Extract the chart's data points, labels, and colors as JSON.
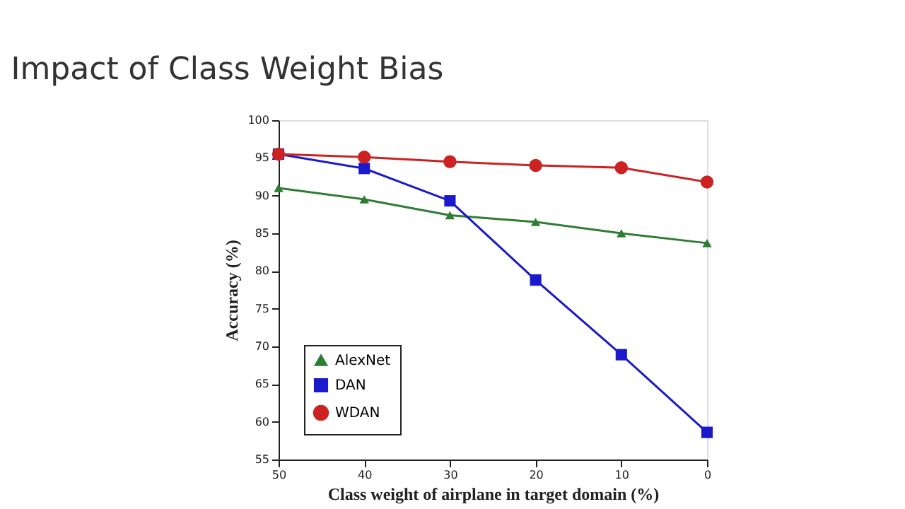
{
  "chart_data": {
    "type": "line",
    "title": "Impact of Class Weight Bias",
    "xlabel": "Class weight of airplane in target domain (%)",
    "ylabel": "Accuracy (%)",
    "x": [
      50,
      40,
      30,
      20,
      10,
      0
    ],
    "xlim": [
      50,
      0
    ],
    "xticks": [
      50,
      40,
      30,
      20,
      10,
      0
    ],
    "ylim": [
      55,
      100
    ],
    "yticks": [
      55,
      60,
      65,
      70,
      75,
      80,
      85,
      90,
      95,
      100
    ],
    "grid": false,
    "legend": "bottom left",
    "line_style": "solid",
    "series": [
      {
        "name": "AlexNet",
        "color": "#2e7d32",
        "marker": "triangle",
        "values": [
          91,
          89.5,
          87.4,
          86.5,
          85,
          83.7
        ]
      },
      {
        "name": "DAN",
        "color": "#1a1acc",
        "marker": "square",
        "values": [
          95.5,
          93.6,
          89.3,
          78.8,
          68.9,
          58.6
        ]
      },
      {
        "name": "WDAN",
        "color": "#cc2222",
        "marker": "circle",
        "values": [
          95.5,
          95.1,
          94.5,
          94,
          93.7,
          91.8
        ]
      }
    ]
  }
}
